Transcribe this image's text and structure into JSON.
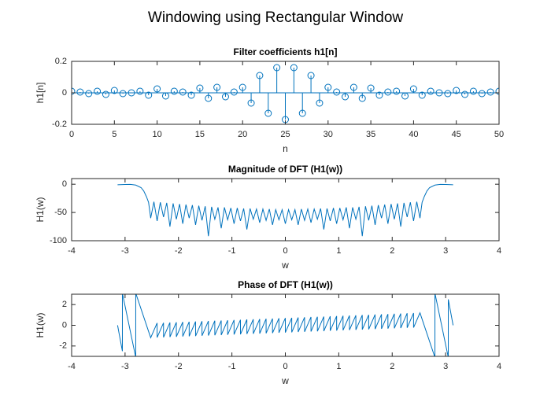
{
  "title": "Windowing using Rectangular Window",
  "chart_data": [
    {
      "type": "stem",
      "title": "Filter coefficients h1[n]",
      "x_label": "n",
      "y_label": "h1[n]",
      "color": "#0072bd",
      "x": [
        0,
        1,
        2,
        3,
        4,
        5,
        6,
        7,
        8,
        9,
        10,
        11,
        12,
        13,
        14,
        15,
        16,
        17,
        18,
        19,
        20,
        21,
        22,
        23,
        24,
        25,
        26,
        27,
        28,
        29,
        30,
        31,
        32,
        33,
        34,
        35,
        36,
        37,
        38,
        39,
        40,
        41,
        42,
        43,
        44,
        45,
        46,
        47,
        48,
        49,
        50
      ],
      "values": [
        0.01,
        0.005,
        -0.005,
        0.01,
        -0.01,
        0.015,
        -0.005,
        0,
        0.01,
        -0.015,
        0.025,
        -0.02,
        0.01,
        0.005,
        -0.015,
        0.03,
        -0.035,
        0.035,
        -0.025,
        0.005,
        0.035,
        -0.065,
        0.11,
        -0.13,
        0.16,
        -0.17,
        0.16,
        -0.13,
        0.11,
        -0.065,
        0.035,
        0.005,
        -0.025,
        0.035,
        -0.035,
        0.03,
        -0.015,
        0.005,
        0.01,
        -0.02,
        0.025,
        -0.015,
        0.01,
        0,
        -0.005,
        0.015,
        -0.01,
        0.01,
        -0.005,
        0.005,
        0.01
      ],
      "xlim": [
        0,
        50
      ],
      "xticks": [
        0,
        5,
        10,
        15,
        20,
        25,
        30,
        35,
        40,
        45,
        50
      ],
      "ylim": [
        -0.2,
        0.2
      ],
      "yticks": [
        -0.2,
        0,
        0.2
      ]
    },
    {
      "type": "line",
      "title": "Magnitude of DFT (H1(w))",
      "x_label": "w",
      "y_label": "H1(w)",
      "color": "#0072bd",
      "x": [
        -3.14,
        -3,
        -2.9,
        -2.8,
        -2.7,
        -2.65,
        -2.6,
        -2.56,
        -2.52,
        -2.46,
        -2.4,
        -2.34,
        -2.28,
        -2.22,
        -2.16,
        -2.1,
        -2.04,
        -1.98,
        -1.92,
        -1.86,
        -1.8,
        -1.74,
        -1.68,
        -1.62,
        -1.56,
        -1.5,
        -1.44,
        -1.38,
        -1.32,
        -1.26,
        -1.2,
        -1.14,
        -1.08,
        -1.02,
        -0.96,
        -0.9,
        -0.84,
        -0.78,
        -0.72,
        -0.66,
        -0.6,
        -0.54,
        -0.48,
        -0.42,
        -0.36,
        -0.3,
        -0.24,
        -0.18,
        -0.12,
        -0.06,
        0,
        0.06,
        0.12,
        0.18,
        0.24,
        0.3,
        0.36,
        0.42,
        0.48,
        0.54,
        0.6,
        0.66,
        0.72,
        0.78,
        0.84,
        0.9,
        0.96,
        1.02,
        1.08,
        1.14,
        1.2,
        1.26,
        1.32,
        1.38,
        1.44,
        1.5,
        1.56,
        1.62,
        1.68,
        1.74,
        1.8,
        1.86,
        1.92,
        1.98,
        2.04,
        2.1,
        2.16,
        2.22,
        2.28,
        2.34,
        2.4,
        2.46,
        2.52,
        2.56,
        2.6,
        2.65,
        2.7,
        2.8,
        2.9,
        3,
        3.14
      ],
      "values": [
        -1,
        -0.5,
        -0.3,
        -1.5,
        -6,
        -12,
        -22,
        -32,
        -60,
        -31,
        -65,
        -32,
        -58,
        -33,
        -75,
        -34,
        -62,
        -35,
        -70,
        -36,
        -60,
        -37,
        -72,
        -38,
        -64,
        -39,
        -92,
        -40,
        -62,
        -41,
        -78,
        -41,
        -63,
        -42,
        -70,
        -42,
        -65,
        -43,
        -80,
        -43,
        -62,
        -44,
        -68,
        -44,
        -64,
        -44,
        -72,
        -45,
        -63,
        -45,
        -70,
        -45,
        -63,
        -45,
        -72,
        -44,
        -64,
        -44,
        -68,
        -44,
        -62,
        -43,
        -80,
        -43,
        -65,
        -42,
        -70,
        -42,
        -63,
        -41,
        -78,
        -41,
        -62,
        -40,
        -92,
        -39,
        -64,
        -38,
        -72,
        -37,
        -60,
        -36,
        -70,
        -35,
        -62,
        -34,
        -75,
        -33,
        -58,
        -32,
        -65,
        -31,
        -60,
        -32,
        -22,
        -12,
        -6,
        -1.5,
        -0.3,
        -0.5,
        -1
      ],
      "xlim": [
        -4,
        4
      ],
      "xticks": [
        -4,
        -3,
        -2,
        -1,
        0,
        1,
        2,
        3,
        4
      ],
      "ylim": [
        -100,
        10
      ],
      "yticks": [
        -100,
        -50,
        0
      ]
    },
    {
      "type": "line",
      "title": "Phase of DFT (H1(w))",
      "x_label": "w",
      "y_label": "H1(w)",
      "color": "#0072bd",
      "x": [
        -3.14,
        -3.05,
        -3.05,
        -2.8,
        -2.8,
        -2.52,
        -2.4,
        -2.4,
        -2.28,
        -2.28,
        -2.16,
        -2.16,
        -2.04,
        -2.04,
        -1.92,
        -1.92,
        -1.8,
        -1.8,
        -1.68,
        -1.68,
        -1.56,
        -1.56,
        -1.44,
        -1.44,
        -1.32,
        -1.32,
        -1.2,
        -1.2,
        -1.08,
        -1.08,
        -0.96,
        -0.96,
        -0.84,
        -0.84,
        -0.72,
        -0.72,
        -0.6,
        -0.6,
        -0.48,
        -0.48,
        -0.36,
        -0.36,
        -0.24,
        -0.24,
        -0.12,
        -0.12,
        0,
        0,
        0.12,
        0.12,
        0.24,
        0.24,
        0.36,
        0.36,
        0.48,
        0.48,
        0.6,
        0.6,
        0.72,
        0.72,
        0.84,
        0.84,
        0.96,
        0.96,
        1.08,
        1.08,
        1.2,
        1.2,
        1.32,
        1.32,
        1.44,
        1.44,
        1.56,
        1.56,
        1.68,
        1.68,
        1.8,
        1.8,
        1.92,
        1.92,
        2.04,
        2.04,
        2.16,
        2.16,
        2.28,
        2.28,
        2.4,
        2.4,
        2.52,
        2.8,
        2.8,
        3.05,
        3.05,
        3.14
      ],
      "values": [
        0,
        -2.5,
        3.1,
        -3.1,
        3.1,
        -1.2,
        0.22,
        -1.18,
        0.24,
        -1.16,
        0.27,
        -1.13,
        0.29,
        -1.11,
        0.32,
        -1.08,
        0.34,
        -1.06,
        0.36,
        -1.04,
        0.39,
        -1.01,
        0.41,
        -0.99,
        0.44,
        -0.96,
        0.46,
        -0.94,
        0.48,
        -0.92,
        0.51,
        -0.89,
        0.53,
        -0.87,
        0.56,
        -0.84,
        0.58,
        -0.82,
        0.6,
        -0.8,
        0.63,
        -0.77,
        0.65,
        -0.75,
        0.68,
        -0.72,
        0.7,
        -0.7,
        0.72,
        -0.68,
        0.75,
        -0.65,
        0.77,
        -0.63,
        0.8,
        -0.6,
        0.82,
        -0.58,
        0.84,
        -0.56,
        0.87,
        -0.53,
        0.89,
        -0.51,
        0.92,
        -0.48,
        0.94,
        -0.46,
        0.96,
        -0.44,
        0.99,
        -0.41,
        1.01,
        -0.39,
        1.04,
        -0.36,
        1.06,
        -0.34,
        1.08,
        -0.32,
        1.11,
        -0.29,
        1.13,
        -0.27,
        1.16,
        -0.24,
        1.18,
        -0.22,
        1.2,
        -3.1,
        3.1,
        -3.1,
        2.5,
        0
      ],
      "xlim": [
        -4,
        4
      ],
      "xticks": [
        -4,
        -3,
        -2,
        -1,
        0,
        1,
        2,
        3,
        4
      ],
      "ylim": [
        -3,
        3
      ],
      "yticks": [
        -2,
        0,
        2
      ]
    }
  ]
}
